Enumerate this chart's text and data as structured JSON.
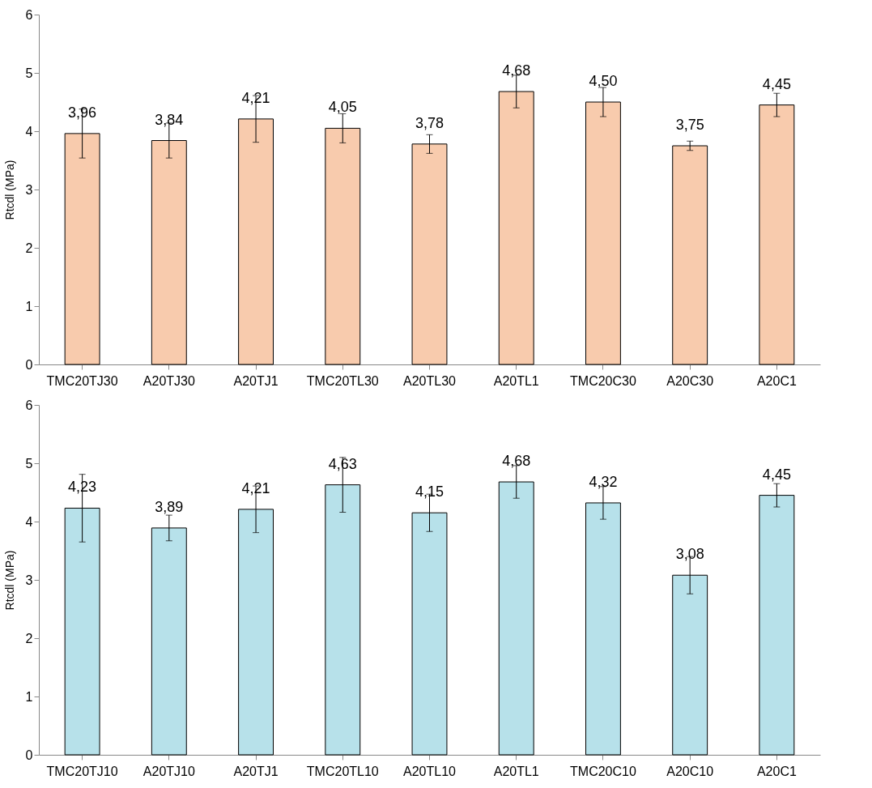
{
  "chart_data": [
    {
      "type": "bar",
      "ylabel": "Rtcdl (MPa)",
      "categories": [
        "TMC20TJ30",
        "A20TJ30",
        "A20TJ1",
        "TMC20TL30",
        "A20TL30",
        "A20TL1",
        "TMC20C30",
        "A20C30",
        "A20C1"
      ],
      "values": [
        3.96,
        3.84,
        4.21,
        4.05,
        3.78,
        4.68,
        4.5,
        3.75,
        4.45
      ],
      "errors": [
        0.42,
        0.3,
        0.4,
        0.25,
        0.16,
        0.28,
        0.25,
        0.08,
        0.2
      ],
      "value_labels": [
        "3,96",
        "3,84",
        "4,21",
        "4,05",
        "3,78",
        "4,68",
        "4,50",
        "3,75",
        "4,45"
      ],
      "color": "#f8cbad",
      "ylim": [
        0,
        6
      ],
      "yticks": [
        0,
        1,
        2,
        3,
        4,
        5,
        6
      ],
      "grid": false
    },
    {
      "type": "bar",
      "ylabel": "Rtcdl (MPa)",
      "categories": [
        "TMC20TJ10",
        "A20TJ10",
        "A20TJ1",
        "TMC20TL10",
        "A20TL10",
        "A20TL1",
        "TMC20C10",
        "A20C10",
        "A20C1"
      ],
      "values": [
        4.23,
        3.89,
        4.21,
        4.63,
        4.15,
        4.68,
        4.32,
        3.08,
        4.45
      ],
      "errors": [
        0.58,
        0.22,
        0.4,
        0.47,
        0.32,
        0.28,
        0.28,
        0.32,
        0.2
      ],
      "value_labels": [
        "4,23",
        "3,89",
        "4,21",
        "4,63",
        "4,15",
        "4,68",
        "4,32",
        "3,08",
        "4,45"
      ],
      "color": "#b7e1ea",
      "ylim": [
        0,
        6
      ],
      "yticks": [
        0,
        1,
        2,
        3,
        4,
        5,
        6
      ],
      "grid": false
    }
  ]
}
